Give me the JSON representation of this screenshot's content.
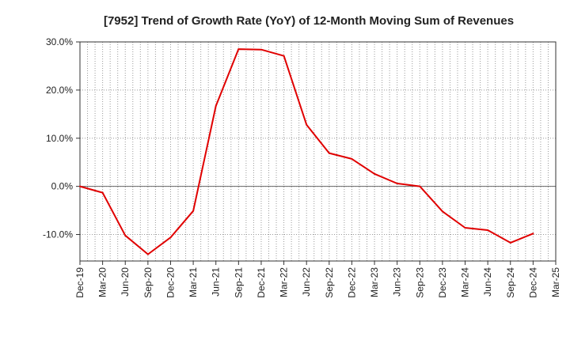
{
  "chart_data": {
    "type": "line",
    "title": "[7952]  Trend of Growth Rate (YoY) of 12-Month Moving Sum of Revenues",
    "xlabel": "",
    "ylabel": "",
    "x_ticks": [
      "Dec-19",
      "Mar-20",
      "Jun-20",
      "Sep-20",
      "Dec-20",
      "Mar-21",
      "Jun-21",
      "Sep-21",
      "Dec-21",
      "Mar-22",
      "Jun-22",
      "Sep-22",
      "Dec-22",
      "Mar-23",
      "Jun-23",
      "Sep-23",
      "Dec-23",
      "Mar-24",
      "Jun-24",
      "Sep-24",
      "Dec-24",
      "Mar-25"
    ],
    "y_ticks": [
      {
        "value": 30,
        "label": "30.0%"
      },
      {
        "value": 20,
        "label": "20.0%"
      },
      {
        "value": 10,
        "label": "10.0%"
      },
      {
        "value": 0,
        "label": "0.0%"
      },
      {
        "value": -10,
        "label": "-10.0%"
      }
    ],
    "ylim": [
      -15.5,
      30
    ],
    "grid": true,
    "series": [
      {
        "color": "#e00000",
        "x": [
          "Dec-19",
          "Mar-20",
          "Jun-20",
          "Sep-20",
          "Dec-20",
          "Mar-21",
          "Jun-21",
          "Sep-21",
          "Dec-21",
          "Mar-22",
          "Jun-22",
          "Sep-22",
          "Dec-22",
          "Mar-23",
          "Jun-23",
          "Sep-23",
          "Dec-23",
          "Mar-24",
          "Jun-24",
          "Sep-24",
          "Dec-24"
        ],
        "values": [
          0.0,
          -1.3,
          -10.2,
          -14.1,
          -10.6,
          -5.1,
          16.7,
          28.5,
          28.4,
          27.1,
          12.8,
          6.9,
          5.7,
          2.6,
          0.6,
          0.0,
          -5.2,
          -8.6,
          -9.1,
          -11.7,
          -9.8
        ]
      }
    ]
  }
}
